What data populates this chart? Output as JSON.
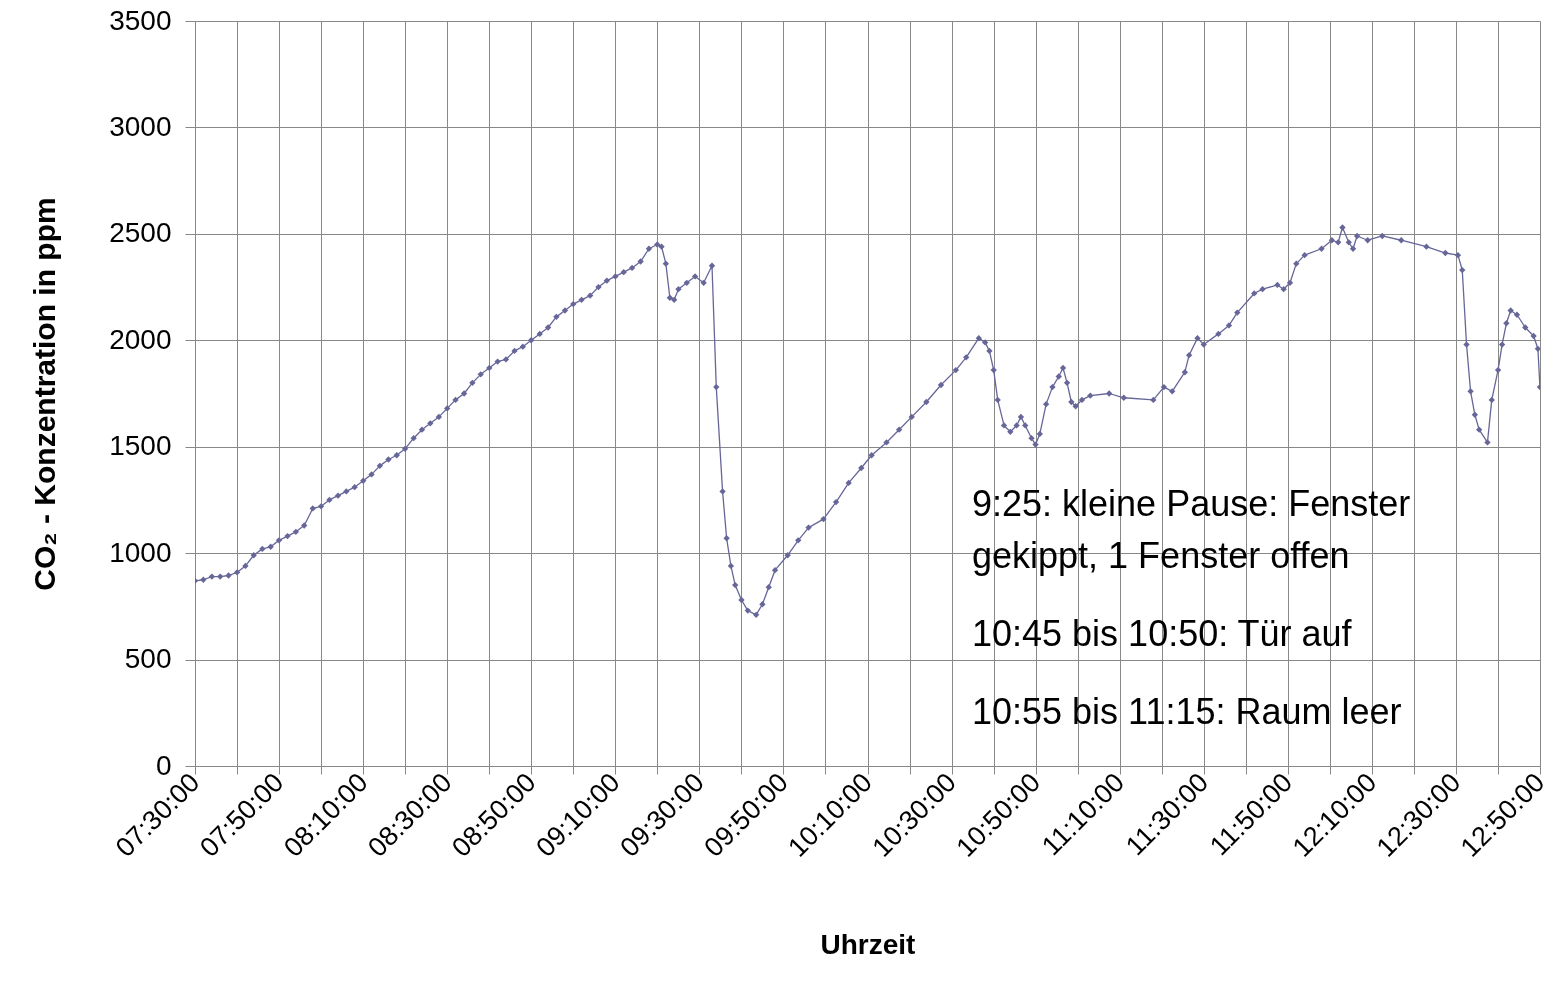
{
  "chart_data": {
    "type": "line",
    "xlabel": "Uhrzeit",
    "ylabel": "CO₂ - Konzentration in ppm",
    "x": [
      7.5,
      7.533,
      7.567,
      7.6,
      7.633,
      7.667,
      7.7,
      7.733,
      7.767,
      7.8,
      7.833,
      7.867,
      7.9,
      7.933,
      7.967,
      8.0,
      8.033,
      8.067,
      8.1,
      8.133,
      8.167,
      8.2,
      8.233,
      8.267,
      8.3,
      8.333,
      8.367,
      8.4,
      8.433,
      8.467,
      8.5,
      8.533,
      8.567,
      8.6,
      8.633,
      8.667,
      8.7,
      8.733,
      8.767,
      8.8,
      8.833,
      8.867,
      8.9,
      8.933,
      8.967,
      9.0,
      9.033,
      9.067,
      9.1,
      9.133,
      9.167,
      9.2,
      9.233,
      9.267,
      9.3,
      9.333,
      9.35,
      9.367,
      9.383,
      9.4,
      9.417,
      9.45,
      9.483,
      9.517,
      9.55,
      9.567,
      9.592,
      9.608,
      9.625,
      9.642,
      9.667,
      9.692,
      9.725,
      9.75,
      9.775,
      9.8,
      9.85,
      9.892,
      9.933,
      9.992,
      10.042,
      10.092,
      10.142,
      10.183,
      10.242,
      10.292,
      10.342,
      10.4,
      10.458,
      10.517,
      10.558,
      10.608,
      10.633,
      10.65,
      10.667,
      10.683,
      10.708,
      10.733,
      10.758,
      10.775,
      10.792,
      10.817,
      10.833,
      10.85,
      10.875,
      10.9,
      10.925,
      10.942,
      10.958,
      10.975,
      10.992,
      11.017,
      11.05,
      11.125,
      11.183,
      11.3,
      11.342,
      11.375,
      11.425,
      11.442,
      11.475,
      11.5,
      11.558,
      11.6,
      11.633,
      11.7,
      11.733,
      11.792,
      11.817,
      11.842,
      11.867,
      11.9,
      11.967,
      12.008,
      12.033,
      12.05,
      12.075,
      12.092,
      12.108,
      12.15,
      12.208,
      12.283,
      12.383,
      12.458,
      12.508,
      12.525,
      12.542,
      12.558,
      12.575,
      12.592,
      12.625,
      12.642,
      12.667,
      12.683,
      12.7,
      12.717,
      12.742,
      12.775,
      12.808,
      12.825,
      12.833
    ],
    "series": [
      {
        "color": "#666699",
        "values": [
          870,
          875,
          890,
          890,
          895,
          910,
          940,
          990,
          1020,
          1030,
          1060,
          1080,
          1100,
          1130,
          1210,
          1220,
          1250,
          1270,
          1290,
          1310,
          1340,
          1370,
          1410,
          1440,
          1460,
          1490,
          1540,
          1580,
          1610,
          1640,
          1680,
          1720,
          1750,
          1800,
          1840,
          1870,
          1900,
          1910,
          1950,
          1970,
          2000,
          2030,
          2060,
          2110,
          2140,
          2170,
          2190,
          2210,
          2250,
          2280,
          2300,
          2320,
          2340,
          2370,
          2430,
          2450,
          2440,
          2360,
          2200,
          2190,
          2240,
          2270,
          2300,
          2270,
          2350,
          1780,
          1290,
          1070,
          940,
          850,
          780,
          730,
          710,
          760,
          840,
          920,
          990,
          1060,
          1120,
          1160,
          1240,
          1330,
          1400,
          1460,
          1520,
          1580,
          1640,
          1710,
          1790,
          1860,
          1920,
          2010,
          1990,
          1950,
          1860,
          1720,
          1600,
          1570,
          1600,
          1640,
          1600,
          1540,
          1510,
          1560,
          1700,
          1780,
          1830,
          1870,
          1800,
          1710,
          1690,
          1720,
          1740,
          1750,
          1730,
          1720,
          1780,
          1760,
          1850,
          1930,
          2010,
          1980,
          2030,
          2070,
          2130,
          2220,
          2240,
          2260,
          2240,
          2270,
          2360,
          2400,
          2430,
          2470,
          2460,
          2530,
          2460,
          2430,
          2490,
          2470,
          2490,
          2470,
          2440,
          2410,
          2400,
          2330,
          1980,
          1760,
          1650,
          1580,
          1520,
          1720,
          1860,
          1980,
          2080,
          2140,
          2120,
          2060,
          2020,
          1960,
          1780
        ]
      }
    ],
    "xlim": [
      7.5,
      12.8333
    ],
    "xticks": [
      {
        "value": 7.5,
        "label": "07:30:00"
      },
      {
        "value": 7.6667,
        "label": null
      },
      {
        "value": 7.8333,
        "label": "07:50:00"
      },
      {
        "value": 8.0,
        "label": null
      },
      {
        "value": 8.1667,
        "label": "08:10:00"
      },
      {
        "value": 8.3333,
        "label": null
      },
      {
        "value": 8.5,
        "label": "08:30:00"
      },
      {
        "value": 8.6667,
        "label": null
      },
      {
        "value": 8.8333,
        "label": "08:50:00"
      },
      {
        "value": 9.0,
        "label": null
      },
      {
        "value": 9.1667,
        "label": "09:10:00"
      },
      {
        "value": 9.3333,
        "label": null
      },
      {
        "value": 9.5,
        "label": "09:30:00"
      },
      {
        "value": 9.6667,
        "label": null
      },
      {
        "value": 9.8333,
        "label": "09:50:00"
      },
      {
        "value": 10.0,
        "label": null
      },
      {
        "value": 10.1667,
        "label": "10:10:00"
      },
      {
        "value": 10.3333,
        "label": null
      },
      {
        "value": 10.5,
        "label": "10:30:00"
      },
      {
        "value": 10.6667,
        "label": null
      },
      {
        "value": 10.8333,
        "label": "10:50:00"
      },
      {
        "value": 11.0,
        "label": null
      },
      {
        "value": 11.1667,
        "label": "11:10:00"
      },
      {
        "value": 11.3333,
        "label": null
      },
      {
        "value": 11.5,
        "label": "11:30:00"
      },
      {
        "value": 11.6667,
        "label": null
      },
      {
        "value": 11.8333,
        "label": "11:50:00"
      },
      {
        "value": 12.0,
        "label": null
      },
      {
        "value": 12.1667,
        "label": "12:10:00"
      },
      {
        "value": 12.3333,
        "label": null
      },
      {
        "value": 12.5,
        "label": "12:30:00"
      },
      {
        "value": 12.6667,
        "label": null
      },
      {
        "value": 12.8333,
        "label": "12:50:00"
      }
    ],
    "ylim": [
      0,
      3500
    ],
    "yticks": [
      0,
      500,
      1000,
      1500,
      2000,
      2500,
      3000,
      3500
    ],
    "grid": true,
    "marker": "diamond",
    "line_style": "solid",
    "annotations": [
      "9:25: kleine Pause: Fenster gekippt, 1 Fenster offen",
      "10:45 bis 10:50: Tür auf",
      "10:55 bis 11:15: Raum leer"
    ]
  }
}
